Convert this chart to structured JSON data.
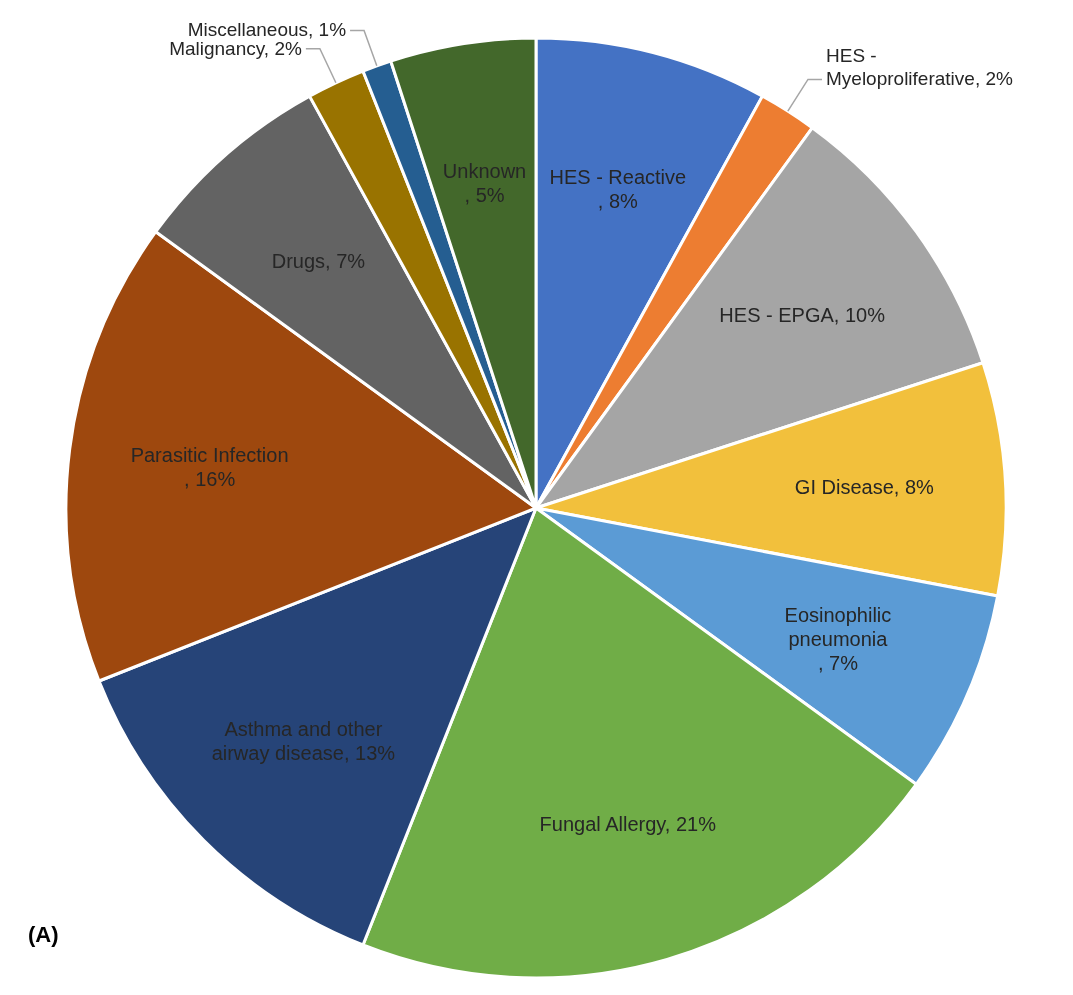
{
  "chart_data": {
    "type": "pie",
    "categories": [
      "HES - Reactive",
      "HES - Myeloproliferative",
      "HES - EPGA",
      "GI Disease",
      "Eosinophilic pneumonia",
      "Fungal Allergy",
      "Asthma and other airway disease",
      "Parasitic Infection",
      "Drugs",
      "Malignancy",
      "Miscellaneous",
      "Unknown"
    ],
    "values": [
      8,
      2,
      10,
      8,
      7,
      21,
      13,
      16,
      7,
      2,
      1,
      5
    ],
    "colors": [
      "#4472c4",
      "#ed7d31",
      "#a5a5a5",
      "#f2c03c",
      "#5b9bd5",
      "#70ad47",
      "#264478",
      "#9e480e",
      "#636363",
      "#997300",
      "#255e91",
      "#43682b"
    ],
    "value_labels": [
      ", 8%",
      ", 2%",
      ", 10%",
      ", 8%",
      ", 7%",
      ", 21%",
      ", 13%",
      ", 16%",
      ", 7%",
      ", 2%",
      ", 1%",
      ", 5%"
    ],
    "annotations": [
      "(A)"
    ]
  }
}
